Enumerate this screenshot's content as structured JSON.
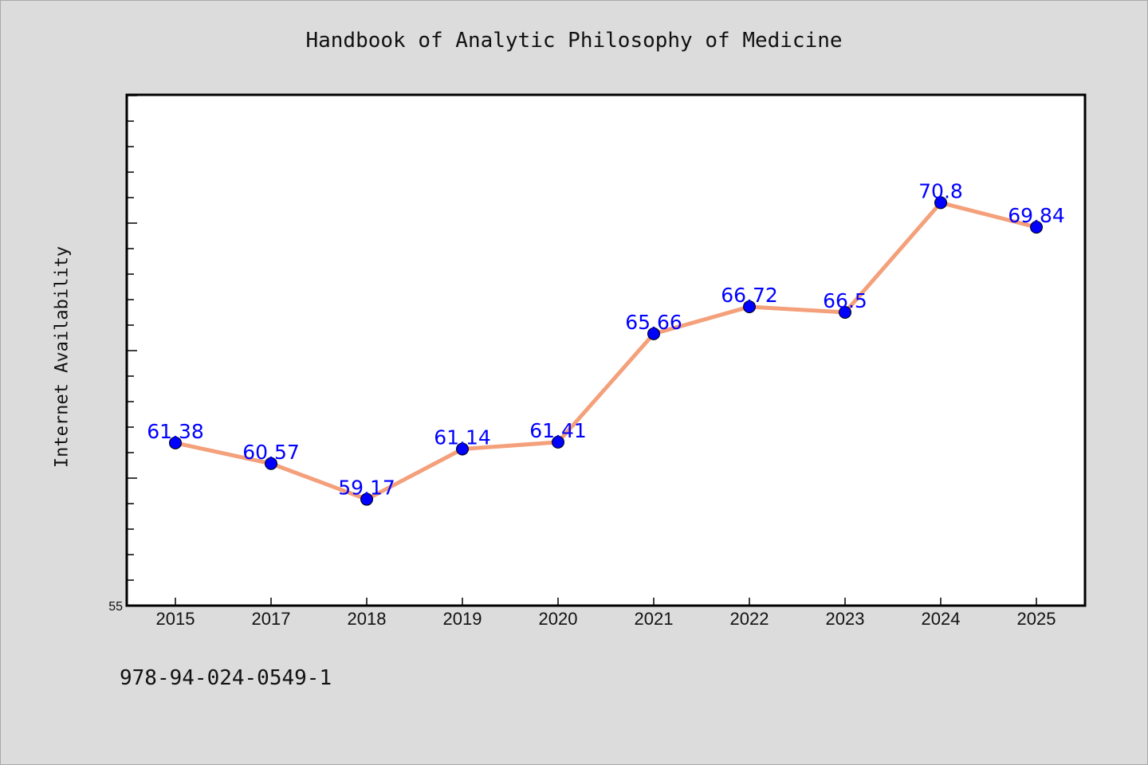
{
  "page": {
    "title": "Handbook of Analytic Philosophy of Medicine",
    "footer_text": "978-94-024-0549-1"
  },
  "chart_data": {
    "type": "line",
    "title": "Handbook of Analytic Philosophy of Medicine",
    "xlabel": "",
    "ylabel": "Internet Availability",
    "categories": [
      "2015",
      "2017",
      "2018",
      "2019",
      "2020",
      "2021",
      "2022",
      "2023",
      "2024",
      "2025"
    ],
    "series": [
      {
        "values": [
          61.38,
          60.57,
          59.17,
          61.14,
          61.41,
          65.66,
          66.72,
          66.5,
          70.8,
          69.84
        ],
        "labels": [
          "61.38",
          "60.57",
          "59.17",
          "61.14",
          "61.41",
          "65.66",
          "66.72",
          "66.5",
          "70.8",
          "69.84"
        ],
        "line_color": "#f4a07a",
        "marker_color": "#0000ff"
      }
    ],
    "ylim": [
      55,
      75
    ],
    "y_tick_labels": [
      "55"
    ],
    "y_tick_step": 1,
    "grid": false,
    "legend": "none"
  }
}
